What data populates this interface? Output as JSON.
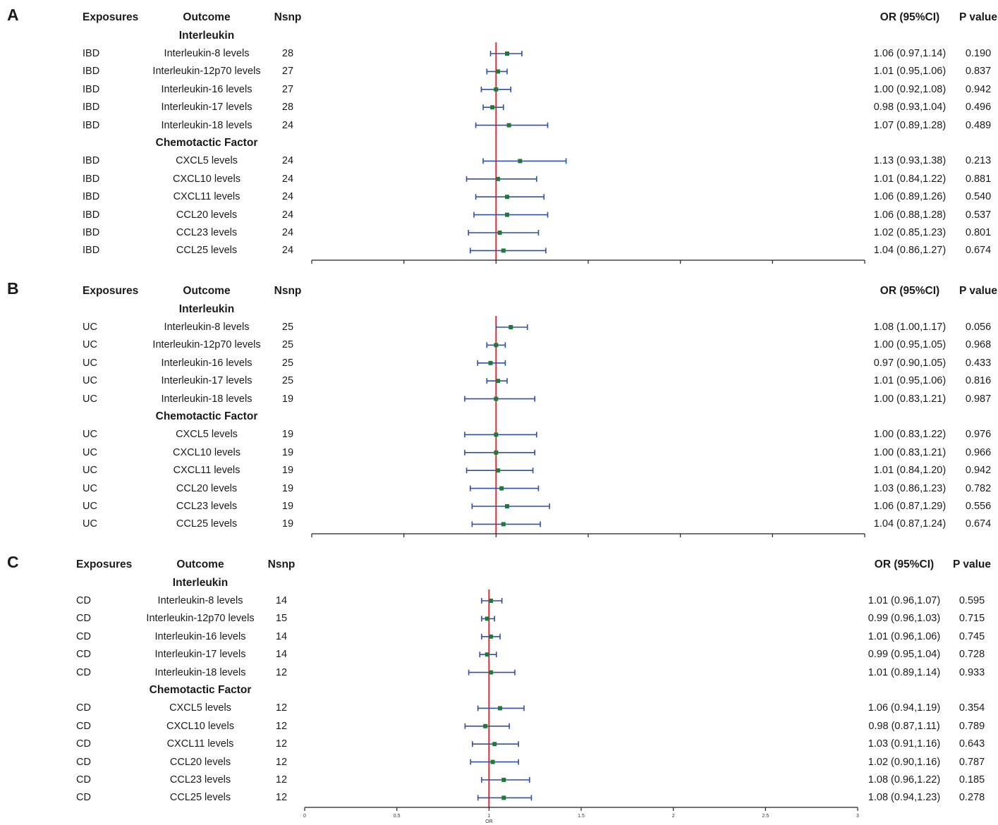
{
  "chart_data": [
    {
      "type": "forest",
      "panel": "A",
      "headers": {
        "exposure": "Exposures",
        "outcome": "Outcome",
        "nsnp": "Nsnp",
        "or": "OR (95%CI)",
        "p": "P value"
      },
      "sections": [
        {
          "title": "Interleukin",
          "rows": [
            {
              "exposure": "IBD",
              "outcome": "Interleukin-8 levels",
              "nsnp": "28",
              "or": 1.06,
              "lo": 0.97,
              "hi": 1.14,
              "or_text": "1.06 (0.97,1.14)",
              "p": "0.190"
            },
            {
              "exposure": "IBD",
              "outcome": "Interleukin-12p70 levels",
              "nsnp": "27",
              "or": 1.01,
              "lo": 0.95,
              "hi": 1.06,
              "or_text": "1.01 (0.95,1.06)",
              "p": "0.837"
            },
            {
              "exposure": "IBD",
              "outcome": "Interleukin-16 levels",
              "nsnp": "27",
              "or": 1.0,
              "lo": 0.92,
              "hi": 1.08,
              "or_text": "1.00 (0.92,1.08)",
              "p": "0.942"
            },
            {
              "exposure": "IBD",
              "outcome": "Interleukin-17 levels",
              "nsnp": "28",
              "or": 0.98,
              "lo": 0.93,
              "hi": 1.04,
              "or_text": "0.98 (0.93,1.04)",
              "p": "0.496"
            },
            {
              "exposure": "IBD",
              "outcome": "Interleukin-18 levels",
              "nsnp": "24",
              "or": 1.07,
              "lo": 0.89,
              "hi": 1.28,
              "or_text": "1.07 (0.89,1.28)",
              "p": "0.489"
            }
          ]
        },
        {
          "title": "Chemotactic Factor",
          "rows": [
            {
              "exposure": "IBD",
              "outcome": "CXCL5 levels",
              "nsnp": "24",
              "or": 1.13,
              "lo": 0.93,
              "hi": 1.38,
              "or_text": "1.13 (0.93,1.38)",
              "p": "0.213"
            },
            {
              "exposure": "IBD",
              "outcome": "CXCL10 levels",
              "nsnp": "24",
              "or": 1.01,
              "lo": 0.84,
              "hi": 1.22,
              "or_text": "1.01 (0.84,1.22)",
              "p": "0.881"
            },
            {
              "exposure": "IBD",
              "outcome": "CXCL11 levels",
              "nsnp": "24",
              "or": 1.06,
              "lo": 0.89,
              "hi": 1.26,
              "or_text": "1.06 (0.89,1.26)",
              "p": "0.540"
            },
            {
              "exposure": "IBD",
              "outcome": "CCL20 levels",
              "nsnp": "24",
              "or": 1.06,
              "lo": 0.88,
              "hi": 1.28,
              "or_text": "1.06 (0.88,1.28)",
              "p": "0.537"
            },
            {
              "exposure": "IBD",
              "outcome": "CCL23 levels",
              "nsnp": "24",
              "or": 1.02,
              "lo": 0.85,
              "hi": 1.23,
              "or_text": "1.02 (0.85,1.23)",
              "p": "0.801"
            },
            {
              "exposure": "IBD",
              "outcome": "CCL25 levels",
              "nsnp": "24",
              "or": 1.04,
              "lo": 0.86,
              "hi": 1.27,
              "or_text": "1.04 (0.86,1.27)",
              "p": "0.674"
            }
          ]
        }
      ],
      "xlim": [
        0,
        3
      ],
      "ref_line": 1,
      "tick_labels": [],
      "xlabel": ""
    },
    {
      "type": "forest",
      "panel": "B",
      "headers": {
        "exposure": "Exposures",
        "outcome": "Outcome",
        "nsnp": "Nsnp",
        "or": "OR (95%CI)",
        "p": "P value"
      },
      "sections": [
        {
          "title": "Interleukin",
          "rows": [
            {
              "exposure": "UC",
              "outcome": "Interleukin-8 levels",
              "nsnp": "25",
              "or": 1.08,
              "lo": 1.0,
              "hi": 1.17,
              "or_text": "1.08 (1.00,1.17)",
              "p": "0.056"
            },
            {
              "exposure": "UC",
              "outcome": "Interleukin-12p70 levels",
              "nsnp": "25",
              "or": 1.0,
              "lo": 0.95,
              "hi": 1.05,
              "or_text": "1.00 (0.95,1.05)",
              "p": "0.968"
            },
            {
              "exposure": "UC",
              "outcome": "Interleukin-16 levels",
              "nsnp": "25",
              "or": 0.97,
              "lo": 0.9,
              "hi": 1.05,
              "or_text": "0.97 (0.90,1.05)",
              "p": "0.433"
            },
            {
              "exposure": "UC",
              "outcome": "Interleukin-17 levels",
              "nsnp": "25",
              "or": 1.01,
              "lo": 0.95,
              "hi": 1.06,
              "or_text": "1.01 (0.95,1.06)",
              "p": "0.816"
            },
            {
              "exposure": "UC",
              "outcome": "Interleukin-18 levels",
              "nsnp": "19",
              "or": 1.0,
              "lo": 0.83,
              "hi": 1.21,
              "or_text": "1.00 (0.83,1.21)",
              "p": "0.987"
            }
          ]
        },
        {
          "title": "Chemotactic Factor",
          "rows": [
            {
              "exposure": "UC",
              "outcome": "CXCL5 levels",
              "nsnp": "19",
              "or": 1.0,
              "lo": 0.83,
              "hi": 1.22,
              "or_text": "1.00 (0.83,1.22)",
              "p": "0.976"
            },
            {
              "exposure": "UC",
              "outcome": "CXCL10 levels",
              "nsnp": "19",
              "or": 1.0,
              "lo": 0.83,
              "hi": 1.21,
              "or_text": "1.00 (0.83,1.21)",
              "p": "0.966"
            },
            {
              "exposure": "UC",
              "outcome": "CXCL11 levels",
              "nsnp": "19",
              "or": 1.01,
              "lo": 0.84,
              "hi": 1.2,
              "or_text": "1.01 (0.84,1.20)",
              "p": "0.942"
            },
            {
              "exposure": "UC",
              "outcome": "CCL20 levels",
              "nsnp": "19",
              "or": 1.03,
              "lo": 0.86,
              "hi": 1.23,
              "or_text": "1.03 (0.86,1.23)",
              "p": "0.782"
            },
            {
              "exposure": "UC",
              "outcome": "CCL23 levels",
              "nsnp": "19",
              "or": 1.06,
              "lo": 0.87,
              "hi": 1.29,
              "or_text": "1.06 (0.87,1.29)",
              "p": "0.556"
            },
            {
              "exposure": "UC",
              "outcome": "CCL25 levels",
              "nsnp": "19",
              "or": 1.04,
              "lo": 0.87,
              "hi": 1.24,
              "or_text": "1.04 (0.87,1.24)",
              "p": "0.674"
            }
          ]
        }
      ],
      "xlim": [
        0,
        3
      ],
      "ref_line": 1,
      "tick_labels": [],
      "xlabel": ""
    },
    {
      "type": "forest",
      "panel": "C",
      "headers": {
        "exposure": "Exposures",
        "outcome": "Outcome",
        "nsnp": "Nsnp",
        "or": "OR (95%CI)",
        "p": "P value"
      },
      "sections": [
        {
          "title": "Interleukin",
          "rows": [
            {
              "exposure": "CD",
              "outcome": "Interleukin-8 levels",
              "nsnp": "14",
              "or": 1.01,
              "lo": 0.96,
              "hi": 1.07,
              "or_text": "1.01 (0.96,1.07)",
              "p": "0.595"
            },
            {
              "exposure": "CD",
              "outcome": "Interleukin-12p70 levels",
              "nsnp": "15",
              "or": 0.99,
              "lo": 0.96,
              "hi": 1.03,
              "or_text": "0.99 (0.96,1.03)",
              "p": "0.715"
            },
            {
              "exposure": "CD",
              "outcome": "Interleukin-16 levels",
              "nsnp": "14",
              "or": 1.01,
              "lo": 0.96,
              "hi": 1.06,
              "or_text": "1.01 (0.96,1.06)",
              "p": "0.745"
            },
            {
              "exposure": "CD",
              "outcome": "Interleukin-17 levels",
              "nsnp": "14",
              "or": 0.99,
              "lo": 0.95,
              "hi": 1.04,
              "or_text": "0.99 (0.95,1.04)",
              "p": "0.728"
            },
            {
              "exposure": "CD",
              "outcome": "Interleukin-18 levels",
              "nsnp": "12",
              "or": 1.01,
              "lo": 0.89,
              "hi": 1.14,
              "or_text": "1.01 (0.89,1.14)",
              "p": "0.933"
            }
          ]
        },
        {
          "title": "Chemotactic Factor",
          "rows": [
            {
              "exposure": "CD",
              "outcome": "CXCL5 levels",
              "nsnp": "12",
              "or": 1.06,
              "lo": 0.94,
              "hi": 1.19,
              "or_text": "1.06 (0.94,1.19)",
              "p": "0.354"
            },
            {
              "exposure": "CD",
              "outcome": "CXCL10 levels",
              "nsnp": "12",
              "or": 0.98,
              "lo": 0.87,
              "hi": 1.11,
              "or_text": "0.98 (0.87,1.11)",
              "p": "0.789"
            },
            {
              "exposure": "CD",
              "outcome": "CXCL11 levels",
              "nsnp": "12",
              "or": 1.03,
              "lo": 0.91,
              "hi": 1.16,
              "or_text": "1.03 (0.91,1.16)",
              "p": "0.643"
            },
            {
              "exposure": "CD",
              "outcome": "CCL20 levels",
              "nsnp": "12",
              "or": 1.02,
              "lo": 0.9,
              "hi": 1.16,
              "or_text": "1.02 (0.90,1.16)",
              "p": "0.787"
            },
            {
              "exposure": "CD",
              "outcome": "CCL23 levels",
              "nsnp": "12",
              "or": 1.08,
              "lo": 0.96,
              "hi": 1.22,
              "or_text": "1.08 (0.96,1.22)",
              "p": "0.185"
            },
            {
              "exposure": "CD",
              "outcome": "CCL25 levels",
              "nsnp": "12",
              "or": 1.08,
              "lo": 0.94,
              "hi": 1.23,
              "or_text": "1.08 (0.94,1.23)",
              "p": "0.278"
            }
          ]
        }
      ],
      "xlim": [
        0,
        3
      ],
      "ref_line": 1,
      "tick_labels": [
        "0",
        "0.5",
        "1",
        "1.5",
        "2",
        "2.5",
        "3"
      ],
      "xlabel": "OR"
    }
  ],
  "colors": {
    "ref_line": "#e8141b",
    "ci_line": "#2f4fa8",
    "point": "#1f7a3a",
    "axis": "#222222"
  }
}
